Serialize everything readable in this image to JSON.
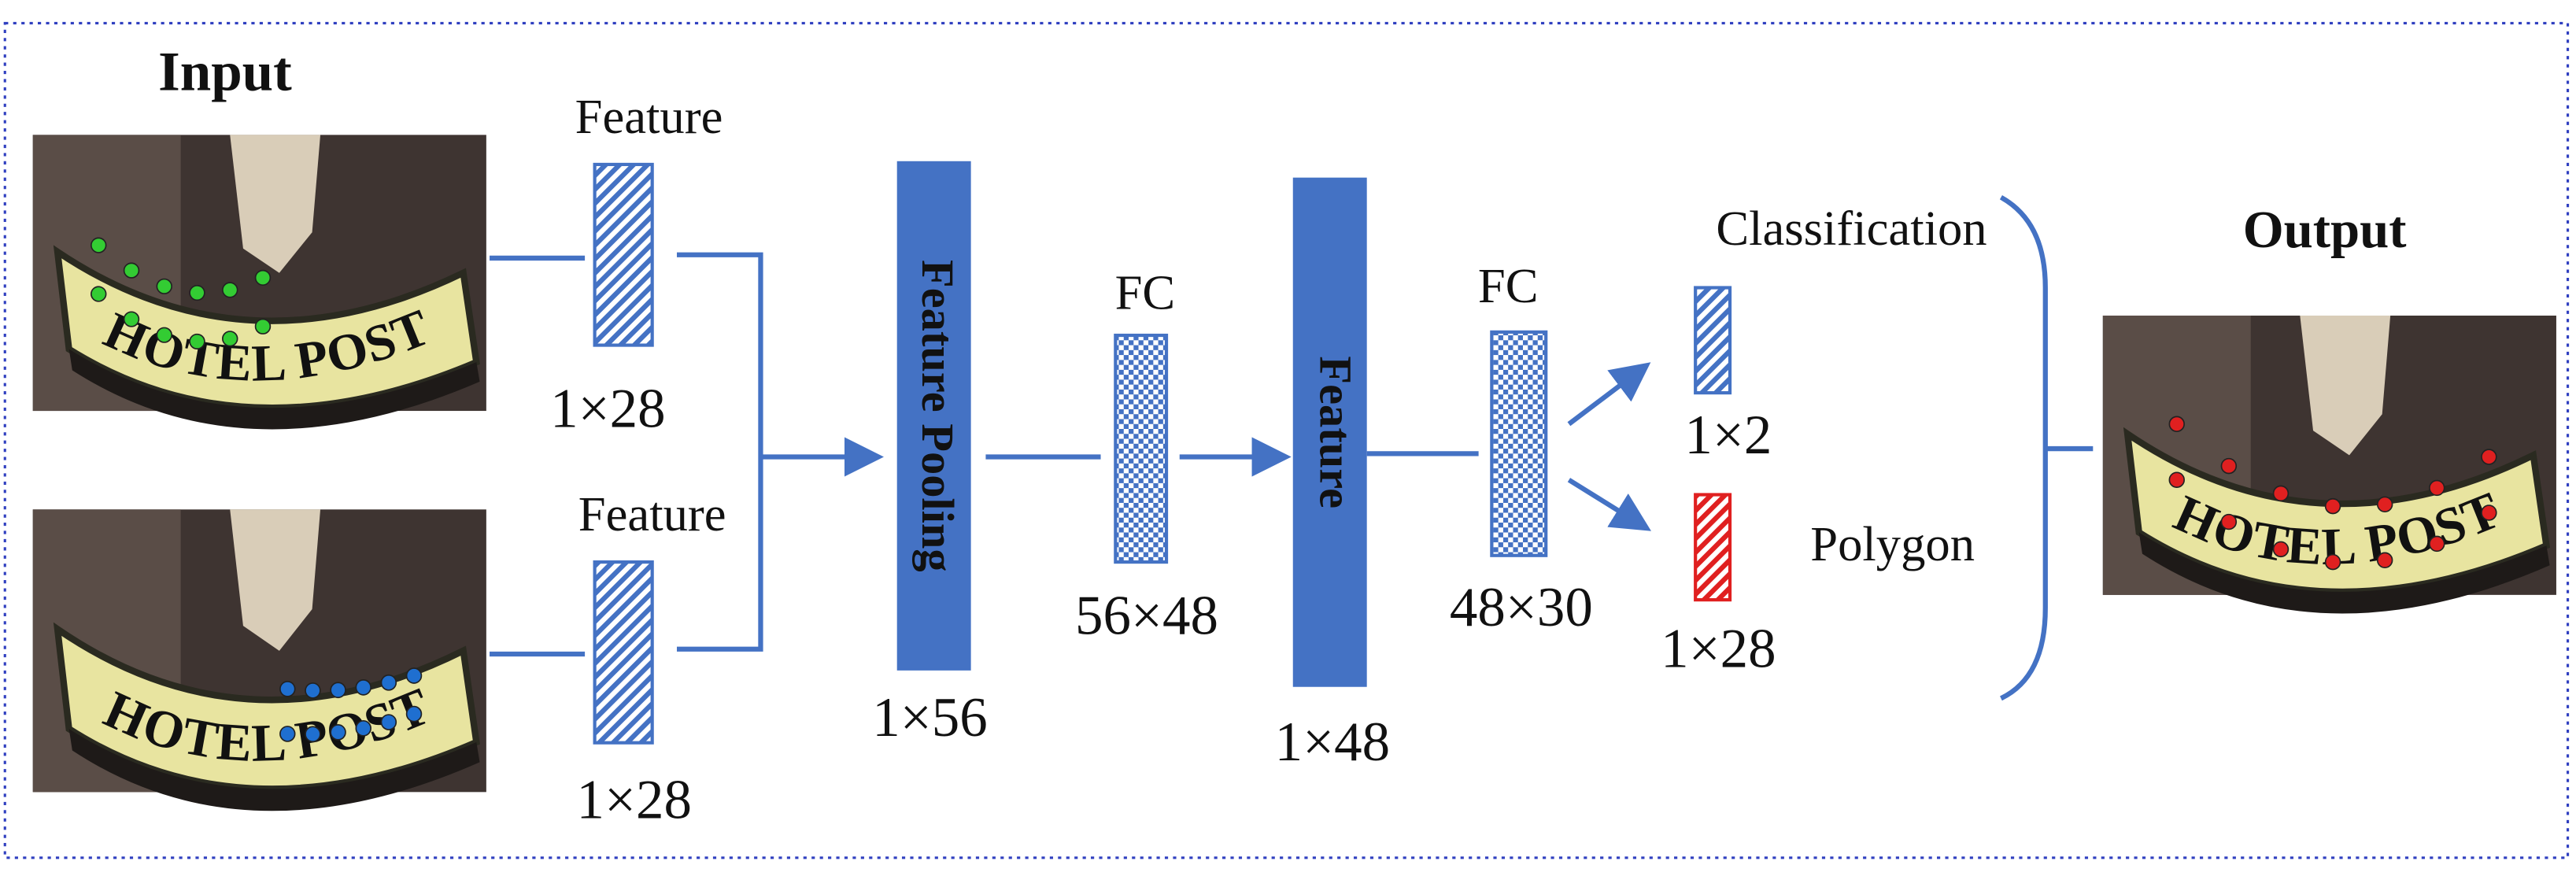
{
  "input_title": "Input",
  "output_title": "Output",
  "sign_text": "HOTEL POST",
  "branches": [
    {
      "label": "Feature",
      "size": "1×28"
    },
    {
      "label": "Feature",
      "size": "1×28"
    }
  ],
  "pooling": {
    "label": "Feature Pooling",
    "size": "1×56"
  },
  "fc1": {
    "label": "FC",
    "size": "56×48"
  },
  "feature": {
    "label": "Feature",
    "size": "1×48"
  },
  "fc2": {
    "label": "FC",
    "size": "48×30"
  },
  "heads": [
    {
      "label": "Classification",
      "size": "1×2"
    },
    {
      "label": "Polygon",
      "size": "1×28"
    }
  ]
}
